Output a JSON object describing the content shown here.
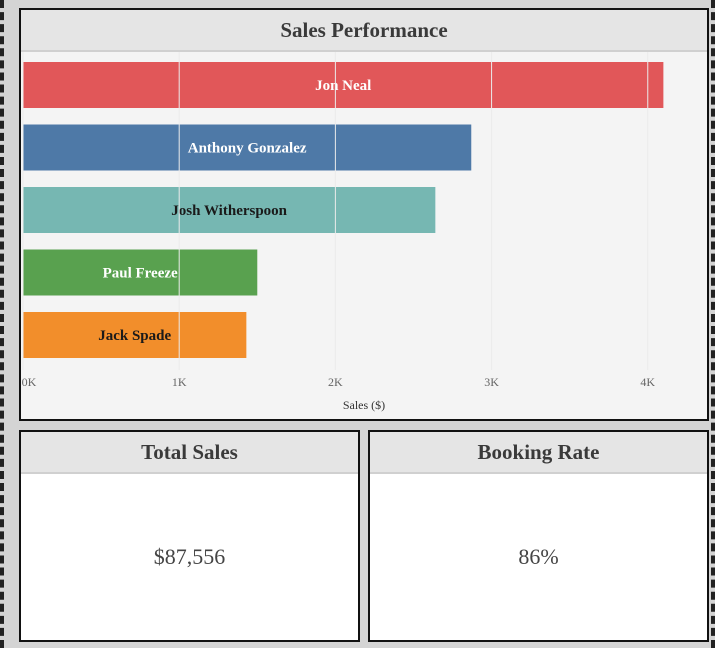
{
  "sales_panel": {
    "title": "Sales Performance"
  },
  "chart_data": {
    "type": "bar",
    "orientation": "horizontal",
    "categories": [
      "Jon Neal",
      "Anthony Gonzalez",
      "Josh Witherspoon",
      "Paul Freeze",
      "Jack Spade"
    ],
    "values": [
      4100,
      2870,
      2640,
      1500,
      1430
    ],
    "colors": [
      "#e15759",
      "#4e79a7",
      "#76b7b2",
      "#59a14f",
      "#f28e2b"
    ],
    "label_colors": [
      "#ffffff",
      "#ffffff",
      "#1a1a1a",
      "#ffffff",
      "#1a1a1a"
    ],
    "xlabel": "Sales ($)",
    "ylabel": "",
    "xlim": [
      0,
      4200
    ],
    "xticks": [
      0,
      1000,
      2000,
      3000,
      4000
    ],
    "xtick_labels": [
      "0K",
      "1K",
      "2K",
      "3K",
      "4K"
    ],
    "grid": false,
    "legend": "none"
  },
  "total_panel": {
    "title": "Total Sales",
    "value": "$87,556"
  },
  "rate_panel": {
    "title": "Booking Rate",
    "value": "86%"
  }
}
